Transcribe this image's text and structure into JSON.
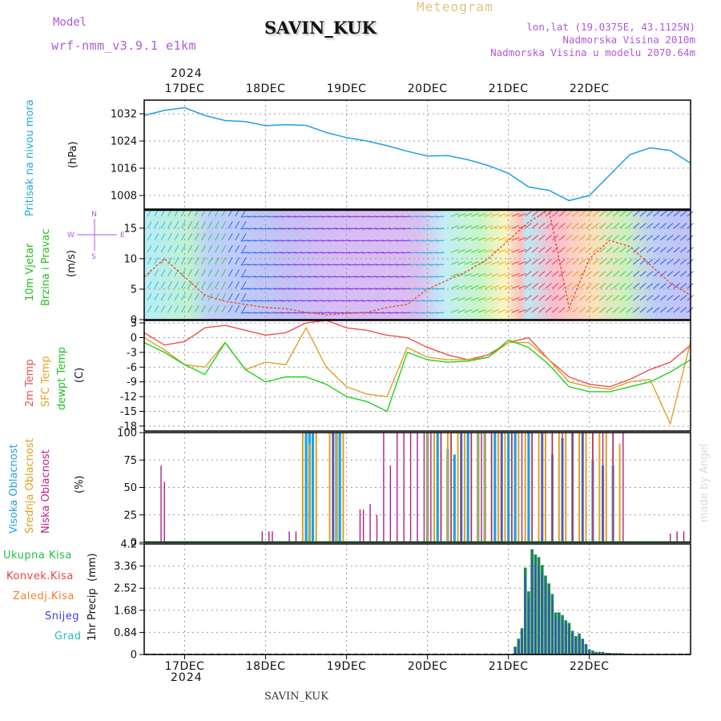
{
  "header": {
    "model_label": "Model",
    "model_value": "wrf-nmm_v3.9.1  e1km",
    "station": "SAVIN_KUK",
    "title": "Meteogram",
    "lonlat": "lon,lat (19.0375E, 43.1125N)",
    "elevation": "Nadmorska Visina 2010m",
    "model_elevation": "Nadmorska Visina u modelu 2070.64m",
    "year": "2024",
    "footer_station": "SAVIN_KUK",
    "credit": "made by Angel"
  },
  "colors": {
    "pressure": "#1ea0e6",
    "temp2m": "#f0504a",
    "sfc_temp": "#e0a028",
    "dewpoint": "#20d020",
    "wind_trace": "#f05030",
    "cloud_high": "#20a0e0",
    "cloud_mid": "#e0a020",
    "cloud_low": "#b0208a",
    "precip_total": "#20c040",
    "precip_conv": "#f04040",
    "precip_freezing": "#f08030",
    "precip_snow": "#4040e0",
    "precip_hail": "#20c0c0",
    "grid": "#9a9a9a"
  },
  "chart_data": [
    {
      "type": "line",
      "panel": "pressure",
      "ylabel_main": "Pritisak na nivou mora",
      "ylabel_unit": "(hPa)",
      "ylim": [
        1004,
        1036
      ],
      "yticks": [
        "1032",
        "1024",
        "1016",
        "1008"
      ],
      "x_categories": [
        "17DEC",
        "18DEC",
        "19DEC",
        "20DEC",
        "21DEC",
        "22DEC"
      ],
      "x": [
        0,
        6,
        12,
        18,
        24,
        30,
        36,
        42,
        48,
        54,
        60,
        66,
        72,
        78,
        84,
        90,
        96,
        102,
        108,
        114,
        120,
        126,
        132,
        138,
        144,
        150,
        156,
        162
      ],
      "series": [
        {
          "values": [
            1031.5,
            1033,
            1033.8,
            1031.5,
            1030,
            1029.7,
            1028.5,
            1028.8,
            1028.6,
            1026.5,
            1025,
            1024,
            1022.6,
            1021,
            1019.6,
            1019.7,
            1018.5,
            1016.8,
            1014.5,
            1010.5,
            1009.5,
            1006.5,
            1008,
            1014,
            1020,
            1022,
            1021.2,
            1017.5
          ]
        }
      ]
    },
    {
      "type": "wind",
      "panel": "wind",
      "ylabel_main": "10m Vjetar",
      "ylabel_sub": "Brzina i Pravac",
      "ylabel_unit": "(m/s)",
      "compass": {
        "n": "N",
        "w": "W",
        "e": "E",
        "s": "S"
      },
      "ylim": [
        0,
        18
      ],
      "yticks": [
        "15",
        "10",
        "5",
        "0"
      ],
      "x": [
        0,
        6,
        12,
        18,
        24,
        30,
        36,
        42,
        48,
        54,
        60,
        66,
        72,
        78,
        84,
        90,
        96,
        102,
        108,
        114,
        120,
        126,
        132,
        138,
        144,
        150,
        156,
        162
      ],
      "series": [
        {
          "values": [
            7,
            10,
            7,
            4,
            3,
            2.5,
            2,
            1.8,
            1.2,
            0.8,
            1,
            1.2,
            2,
            2.5,
            5,
            6.5,
            8,
            10,
            13,
            16,
            18,
            2,
            10,
            13,
            12,
            9,
            6,
            4
          ]
        }
      ]
    },
    {
      "type": "line",
      "panel": "temperature",
      "ylabel_main": "2m Temp",
      "ylabel_sfc": "SFC Temp",
      "ylabel_dew": "dewpt Temp",
      "ylabel_unit": "(C)",
      "ylim": [
        -19,
        3.5
      ],
      "yticks": [
        "3",
        "0",
        "-3",
        "-6",
        "-9",
        "-12",
        "-15",
        "-18"
      ],
      "x": [
        0,
        6,
        12,
        18,
        24,
        30,
        36,
        42,
        48,
        54,
        60,
        66,
        72,
        78,
        84,
        90,
        96,
        102,
        108,
        114,
        120,
        126,
        132,
        138,
        144,
        150,
        156,
        162
      ],
      "series": [
        {
          "name": "2m Temp",
          "values": [
            1,
            -1.5,
            -0.8,
            2,
            2.5,
            1.5,
            0.5,
            1,
            3,
            3.5,
            2,
            1.5,
            0.5,
            0,
            -2,
            -3.5,
            -4.5,
            -3.5,
            -1,
            0,
            -4.5,
            -8,
            -9.5,
            -10,
            -8.5,
            -6.5,
            -5,
            -1.5
          ]
        },
        {
          "name": "SFC Temp",
          "values": [
            0,
            -2.5,
            -5.5,
            -6,
            -1,
            -6.5,
            -5,
            -5.5,
            2,
            -6,
            -10,
            -11.5,
            -12,
            -2,
            -4,
            -4.5,
            -4.5,
            -4,
            -1,
            -1,
            -4.5,
            -9,
            -10,
            -10.5,
            -9,
            -8.5,
            -17.5,
            -0.8
          ]
        },
        {
          "name": "dewpt Temp",
          "values": [
            -1,
            -3,
            -5.5,
            -7.5,
            -1,
            -6.5,
            -9,
            -8,
            -8,
            -9.5,
            -12,
            -13,
            -15,
            -3,
            -4.5,
            -5,
            -4.8,
            -4,
            -0.5,
            -2,
            -5.5,
            -10,
            -11,
            -11,
            -10,
            -9,
            -7,
            -4.5
          ]
        }
      ]
    },
    {
      "type": "bar",
      "panel": "clouds",
      "ylabel_high": "Visoka Oblacnost",
      "ylabel_mid": "Srednja Oblacnost",
      "ylabel_low": "Niska Oblacnost",
      "ylabel_unit": "(%)",
      "ylim": [
        0,
        100
      ],
      "yticks": [
        "100",
        "75",
        "50",
        "25",
        "0"
      ],
      "series": [
        {
          "name": "Visoka Oblacnost",
          "x": [
            48,
            49,
            50,
            56,
            57,
            58,
            84,
            87,
            90,
            92,
            94,
            96,
            99,
            101,
            104,
            106,
            108,
            110,
            114,
            118,
            121,
            124,
            127,
            130,
            133,
            136,
            139
          ],
          "values": [
            100,
            100,
            100,
            100,
            100,
            100,
            100,
            100,
            85,
            80,
            100,
            100,
            100,
            100,
            100,
            100,
            100,
            100,
            100,
            100,
            80,
            95,
            100,
            100,
            75,
            70,
            70
          ]
        },
        {
          "name": "Srednja Oblacnost",
          "x": [
            47,
            49,
            51,
            55,
            57,
            59,
            84,
            86,
            88,
            90,
            91,
            93,
            95,
            97,
            99,
            101,
            103,
            105,
            107,
            109,
            111,
            113,
            115,
            117,
            119,
            121,
            123,
            125,
            127,
            129,
            131,
            133,
            135,
            137,
            139,
            141
          ],
          "values": [
            100,
            90,
            100,
            100,
            100,
            100,
            100,
            100,
            100,
            100,
            100,
            100,
            100,
            100,
            100,
            100,
            100,
            100,
            100,
            100,
            100,
            100,
            100,
            100,
            100,
            100,
            100,
            100,
            100,
            100,
            100,
            100,
            100,
            100,
            100,
            90
          ]
        },
        {
          "name": "Niska Oblacnost",
          "x": [
            5,
            6,
            35,
            37,
            38,
            43,
            45,
            56,
            64,
            65,
            67,
            69,
            71,
            73,
            75,
            77,
            79,
            81,
            83,
            85,
            88,
            91,
            94,
            97,
            100,
            103,
            106,
            109,
            112,
            115,
            118,
            121,
            124,
            127,
            130,
            133,
            136,
            139,
            142,
            156,
            158,
            160
          ],
          "values": [
            70,
            55,
            10,
            10,
            10,
            10,
            10,
            100,
            30,
            30,
            35,
            25,
            100,
            70,
            100,
            100,
            100,
            100,
            100,
            100,
            100,
            100,
            100,
            100,
            100,
            100,
            100,
            100,
            100,
            100,
            100,
            100,
            100,
            100,
            100,
            100,
            100,
            100,
            100,
            8,
            10,
            10
          ]
        }
      ]
    },
    {
      "type": "bar",
      "panel": "precip",
      "legend": [
        "Ukupna Kisa",
        "Konvek.Kisa",
        "Zaledj.Kisa",
        "Snijeg",
        "Grad"
      ],
      "ylabel_main": "1hr Precip",
      "ylabel_unit": "(mm)",
      "ylim": [
        0,
        4.2
      ],
      "yticks": [
        "4.2",
        "3.36",
        "2.52",
        "1.68",
        "0.84",
        "0"
      ],
      "series": [
        {
          "name": "Ukupna Kisa",
          "x": [
            110,
            111,
            112,
            113,
            114,
            115,
            116,
            117,
            118,
            119,
            120,
            121,
            122,
            123,
            124,
            125,
            126,
            127,
            128,
            129,
            130,
            131,
            132,
            133,
            134,
            135,
            136,
            137,
            138,
            139,
            140,
            141,
            142,
            143,
            144
          ],
          "values": [
            0.3,
            0.6,
            1.0,
            3.3,
            2.4,
            4.0,
            3.8,
            3.7,
            3.4,
            3.0,
            2.7,
            2.3,
            1.6,
            1.6,
            1.5,
            1.3,
            1.2,
            0.9,
            0.7,
            0.8,
            0.6,
            0.4,
            0.2,
            0.15,
            0.1,
            0.1,
            0.1,
            0.06,
            0.06,
            0.05,
            0.05,
            0.05,
            0.04,
            0.03,
            0.02
          ]
        }
      ]
    }
  ]
}
